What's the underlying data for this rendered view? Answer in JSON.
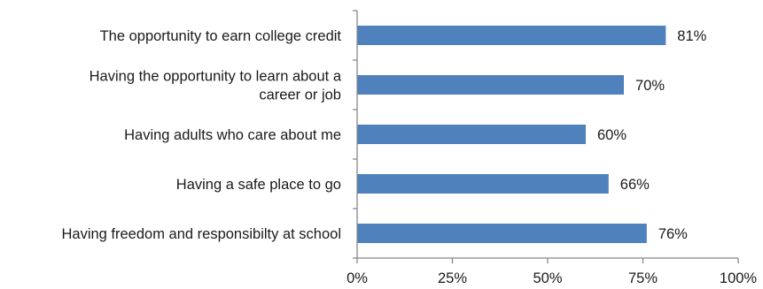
{
  "chart_data": {
    "type": "bar",
    "orientation": "horizontal",
    "categories": [
      [
        "The opportunity to earn college credit"
      ],
      [
        "Having the opportunity to learn about a",
        "career or job"
      ],
      [
        "Having adults who care about me"
      ],
      [
        "Having a safe place to go"
      ],
      [
        "Having freedom and responsibilty at school"
      ]
    ],
    "values": [
      81,
      70,
      60,
      66,
      76
    ],
    "value_labels": [
      "81%",
      "70%",
      "60%",
      "66%",
      "76%"
    ],
    "xlim": [
      0,
      100
    ],
    "xticks": [
      0,
      25,
      50,
      75,
      100
    ],
    "xtick_labels": [
      "0%",
      "25%",
      "50%",
      "75%",
      "100%"
    ],
    "title": "",
    "xlabel": "",
    "ylabel": "",
    "grid": false,
    "legend": "none",
    "bar_color": "#4f81bd",
    "axis_color": "#888888"
  }
}
